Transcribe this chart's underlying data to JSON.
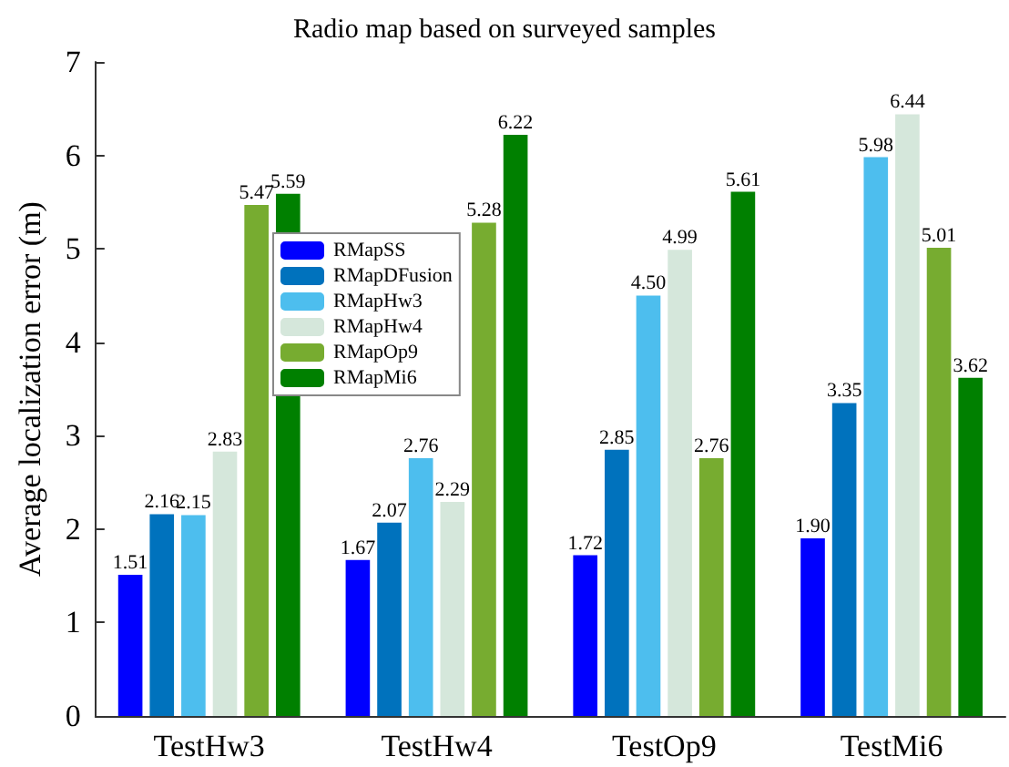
{
  "chart_data": {
    "type": "bar",
    "title": "Radio map based on surveyed samples",
    "ylabel": "Average localization error (m)",
    "categories": [
      "TestHw3",
      "TestHw4",
      "TestOp9",
      "TestMi6"
    ],
    "series": [
      {
        "name": "RMapSS",
        "color": "#0000ff",
        "values": [
          1.51,
          1.67,
          1.72,
          1.9
        ],
        "value_labels": [
          "1.51",
          "1.67",
          "1.72",
          "1.90"
        ]
      },
      {
        "name": "RMapDFusion",
        "color": "#0072bd",
        "values": [
          2.16,
          2.07,
          2.85,
          3.35
        ],
        "value_labels": [
          "2.16",
          "2.07",
          "2.85",
          "3.35"
        ]
      },
      {
        "name": "RMapHw3",
        "color": "#4dbeee",
        "values": [
          2.15,
          2.76,
          4.5,
          5.98
        ],
        "value_labels": [
          "2.15",
          "2.76",
          "4.50",
          "5.98"
        ]
      },
      {
        "name": "RMapHw4",
        "color": "#d5e7db",
        "values": [
          2.83,
          2.29,
          4.99,
          6.44
        ],
        "value_labels": [
          "2.83",
          "2.29",
          "4.99",
          "6.44"
        ]
      },
      {
        "name": "RMapOp9",
        "color": "#77ac30",
        "values": [
          5.47,
          5.28,
          2.76,
          5.01
        ],
        "value_labels": [
          "5.47",
          "5.28",
          "2.76",
          "5.01"
        ]
      },
      {
        "name": "RMapMi6",
        "color": "#008000",
        "values": [
          5.59,
          6.22,
          5.61,
          3.62
        ],
        "value_labels": [
          "5.59",
          "6.22",
          "5.61",
          "3.62"
        ]
      }
    ],
    "ylim": [
      0,
      7
    ],
    "yticks": [
      0,
      1,
      2,
      3,
      4,
      5,
      6,
      7
    ],
    "grid": false,
    "legend": "left"
  }
}
